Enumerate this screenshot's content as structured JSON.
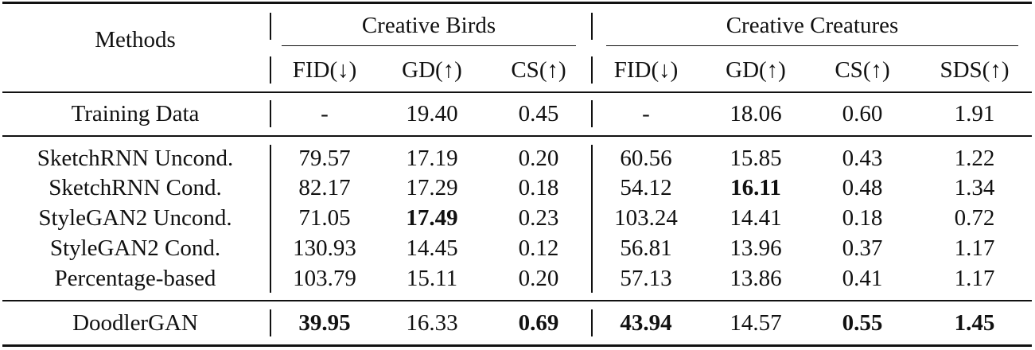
{
  "header": {
    "methods": "Methods",
    "group_birds": "Creative Birds",
    "group_creatures": "Creative Creatures",
    "birds_cols": [
      "FID(↓)",
      "GD(↑)",
      "CS(↑)"
    ],
    "creatures_cols": [
      "FID(↓)",
      "GD(↑)",
      "CS(↑)",
      "SDS(↑)"
    ]
  },
  "rows": [
    {
      "method": "Training Data",
      "birds": [
        "-",
        "19.40",
        "0.45"
      ],
      "creatures": [
        "-",
        "18.06",
        "0.60",
        "1.91"
      ]
    },
    {
      "method": "SketchRNN Uncond.",
      "birds": [
        "79.57",
        "17.19",
        "0.20"
      ],
      "creatures": [
        "60.56",
        "15.85",
        "0.43",
        "1.22"
      ]
    },
    {
      "method": "SketchRNN Cond.",
      "birds": [
        "82.17",
        "17.29",
        "0.18"
      ],
      "creatures": [
        "54.12",
        "16.11",
        "0.48",
        "1.34"
      ]
    },
    {
      "method": "StyleGAN2 Uncond.",
      "birds": [
        "71.05",
        "17.49",
        "0.23"
      ],
      "creatures": [
        "103.24",
        "14.41",
        "0.18",
        "0.72"
      ]
    },
    {
      "method": "StyleGAN2 Cond.",
      "birds": [
        "130.93",
        "14.45",
        "0.12"
      ],
      "creatures": [
        "56.81",
        "13.96",
        "0.37",
        "1.17"
      ]
    },
    {
      "method": "Percentage-based",
      "birds": [
        "103.79",
        "15.11",
        "0.20"
      ],
      "creatures": [
        "57.13",
        "13.86",
        "0.41",
        "1.17"
      ]
    },
    {
      "method": "DoodlerGAN",
      "birds": [
        "39.95",
        "16.33",
        "0.69"
      ],
      "creatures": [
        "43.94",
        "14.57",
        "0.55",
        "1.45"
      ]
    }
  ],
  "bold_cells": [
    "rows.2.creatures.1",
    "rows.3.birds.1",
    "rows.6.birds.0",
    "rows.6.birds.2",
    "rows.6.creatures.0",
    "rows.6.creatures.2",
    "rows.6.creatures.3"
  ]
}
